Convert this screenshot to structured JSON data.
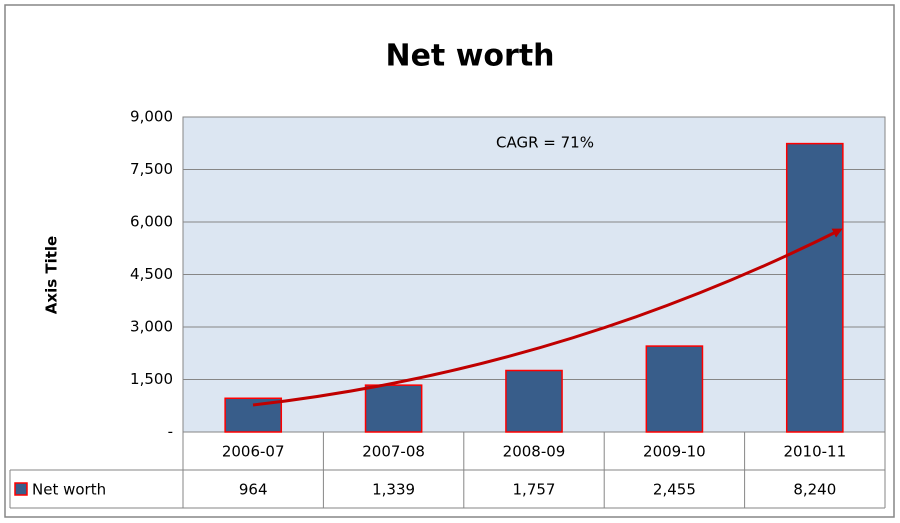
{
  "chart_data": {
    "type": "bar",
    "title": "Net worth",
    "y_label": "Axis Title",
    "annotation": "CAGR = 71%",
    "series": [
      {
        "name": "Net worth",
        "color": "#385d8a",
        "values": [
          964,
          1339,
          1757,
          2455,
          8240
        ],
        "value_labels": [
          "964",
          "1,339",
          "1,757",
          "2,455",
          "8,240"
        ]
      }
    ],
    "categories": [
      "2006-07",
      "2007-08",
      "2008-09",
      "2009-10",
      "2010-11"
    ],
    "ylim": [
      0,
      9000
    ],
    "yticks": [
      {
        "value": 0,
        "label": "-"
      },
      {
        "value": 1500,
        "label": "1,500"
      },
      {
        "value": 3000,
        "label": "3,000"
      },
      {
        "value": 4500,
        "label": "4,500"
      },
      {
        "value": 6000,
        "label": "6,000"
      },
      {
        "value": 7500,
        "label": "7,500"
      },
      {
        "value": 9000,
        "label": "9,000"
      }
    ],
    "grid": true
  }
}
